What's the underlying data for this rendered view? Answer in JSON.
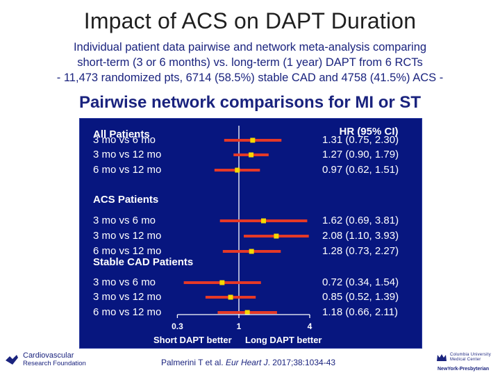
{
  "title": "Impact of ACS on DAPT Duration",
  "subtitle": {
    "line1": "Individual patient data pairwise and network meta-analysis comparing",
    "line2": "short-term (3 or 6 months) vs. long-term (1 year) DAPT from 6 RCTs",
    "line3": "- 11,473 randomized pts, 6714 (58.5%) stable CAD and 4758 (41.5%) ACS -"
  },
  "section_title": "Pairwise network comparisons for MI or ST",
  "citation": {
    "authors": "Palmerini T et al. ",
    "journal": "Eur Heart J",
    "details": ". 2017;38:1034-43"
  },
  "logos": {
    "left_line1": "Cardiovascular",
    "left_line2": "Research Foundation",
    "right_line1": "Columbia University",
    "right_line2": "Medical Center",
    "right_line3": "NewYork-Presbyterian"
  },
  "colors": {
    "plot_bg": "#07167f",
    "ci_line": "#e53927",
    "point": "#f5d800",
    "text_blue": "#1a237e"
  },
  "chart_data": {
    "type": "forest",
    "title": "Pairwise network comparisons for MI or ST",
    "hr_header": "HR (95% CI)",
    "scale": "log",
    "xlim": [
      0.3,
      4
    ],
    "xticks": [
      "0.3",
      "1",
      "4"
    ],
    "xlabel_left": "Short DAPT better",
    "xlabel_right": "Long DAPT better",
    "reference_line": 1,
    "groups": [
      {
        "label": "All Patients",
        "rows": [
          {
            "label": "3 mo vs 6 mo",
            "hr": 1.31,
            "lo": 0.75,
            "hi": 2.3,
            "text": "1.31 (0.75, 2.30)"
          },
          {
            "label": "3 mo vs 12 mo",
            "hr": 1.27,
            "lo": 0.9,
            "hi": 1.79,
            "text": "1.27 (0.90, 1.79)"
          },
          {
            "label": "6 mo vs 12 mo",
            "hr": 0.97,
            "lo": 0.62,
            "hi": 1.51,
            "text": "0.97 (0.62, 1.51)"
          }
        ]
      },
      {
        "label": "ACS Patients",
        "rows": [
          {
            "label": "3 mo vs 6 mo",
            "hr": 1.62,
            "lo": 0.69,
            "hi": 3.81,
            "text": "1.62 (0.69, 3.81)"
          },
          {
            "label": "3 mo vs 12 mo",
            "hr": 2.08,
            "lo": 1.1,
            "hi": 3.93,
            "text": "2.08 (1.10, 3.93)"
          },
          {
            "label": "6 mo vs 12 mo",
            "hr": 1.28,
            "lo": 0.73,
            "hi": 2.27,
            "text": "1.28 (0.73, 2.27)"
          }
        ]
      },
      {
        "label": "Stable CAD Patients",
        "rows": [
          {
            "label": "3 mo vs 6 mo",
            "hr": 0.72,
            "lo": 0.34,
            "hi": 1.54,
            "text": "0.72 (0.34, 1.54)"
          },
          {
            "label": "3 mo vs 12 mo",
            "hr": 0.85,
            "lo": 0.52,
            "hi": 1.39,
            "text": "0.85 (0.52, 1.39)"
          },
          {
            "label": "6 mo vs 12 mo",
            "hr": 1.18,
            "lo": 0.66,
            "hi": 2.11,
            "text": "1.18 (0.66, 2.11)"
          }
        ]
      }
    ]
  }
}
